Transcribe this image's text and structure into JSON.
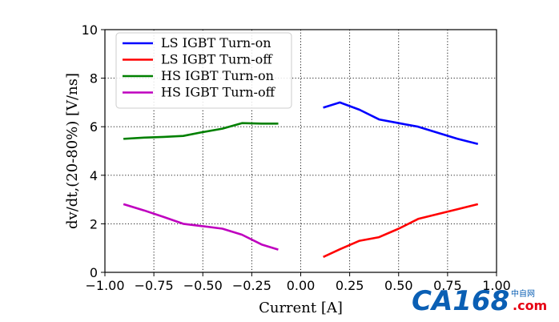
{
  "chart_data": {
    "type": "line",
    "title": "",
    "xlabel": "Current [A]",
    "ylabel": "dv/dt,(20-80%) [V/ns]",
    "xlim": [
      -1.0,
      1.0
    ],
    "ylim": [
      0,
      10
    ],
    "xticks": [
      -1.0,
      -0.75,
      -0.5,
      -0.25,
      0.0,
      0.25,
      0.5,
      0.75,
      1.0
    ],
    "xtick_labels": [
      "−1.00",
      "−0.75",
      "−0.50",
      "−0.25",
      "0.00",
      "0.25",
      "0.50",
      "0.75",
      "1.00"
    ],
    "yticks": [
      0,
      2,
      4,
      6,
      8,
      10
    ],
    "ytick_labels": [
      "0",
      "2",
      "4",
      "6",
      "8",
      "10"
    ],
    "grid": true,
    "grid_style": "dotted",
    "legend_position": "top-left",
    "series": [
      {
        "name": "LS IGBT Turn-on",
        "color": "#0000ff",
        "x": [
          0.12,
          0.2,
          0.3,
          0.4,
          0.5,
          0.6,
          0.7,
          0.8,
          0.9
        ],
        "y": [
          6.8,
          7.0,
          6.7,
          6.3,
          6.15,
          6.0,
          5.75,
          5.5,
          5.3
        ]
      },
      {
        "name": "LS IGBT Turn-off",
        "color": "#ff0000",
        "x": [
          0.12,
          0.2,
          0.3,
          0.4,
          0.5,
          0.6,
          0.7,
          0.8,
          0.9
        ],
        "y": [
          0.65,
          0.95,
          1.3,
          1.45,
          1.8,
          2.2,
          2.4,
          2.6,
          2.8
        ]
      },
      {
        "name": "HS IGBT Turn-on",
        "color": "#008000",
        "x": [
          -0.9,
          -0.8,
          -0.7,
          -0.6,
          -0.5,
          -0.4,
          -0.3,
          -0.2,
          -0.12
        ],
        "y": [
          5.5,
          5.55,
          5.58,
          5.62,
          5.78,
          5.92,
          6.15,
          6.13,
          6.13
        ]
      },
      {
        "name": "HS IGBT Turn-off",
        "color": "#bf00bf",
        "x": [
          -0.9,
          -0.8,
          -0.7,
          -0.6,
          -0.5,
          -0.4,
          -0.3,
          -0.2,
          -0.12
        ],
        "y": [
          2.8,
          2.55,
          2.28,
          2.0,
          1.9,
          1.8,
          1.55,
          1.15,
          0.95
        ]
      }
    ]
  },
  "watermark": {
    "logo_text": "CA168",
    "sub_text": "中自网",
    "domain_text": ".com",
    "colors": {
      "primary": "#0a5fb4",
      "accent": "#e60012"
    }
  }
}
